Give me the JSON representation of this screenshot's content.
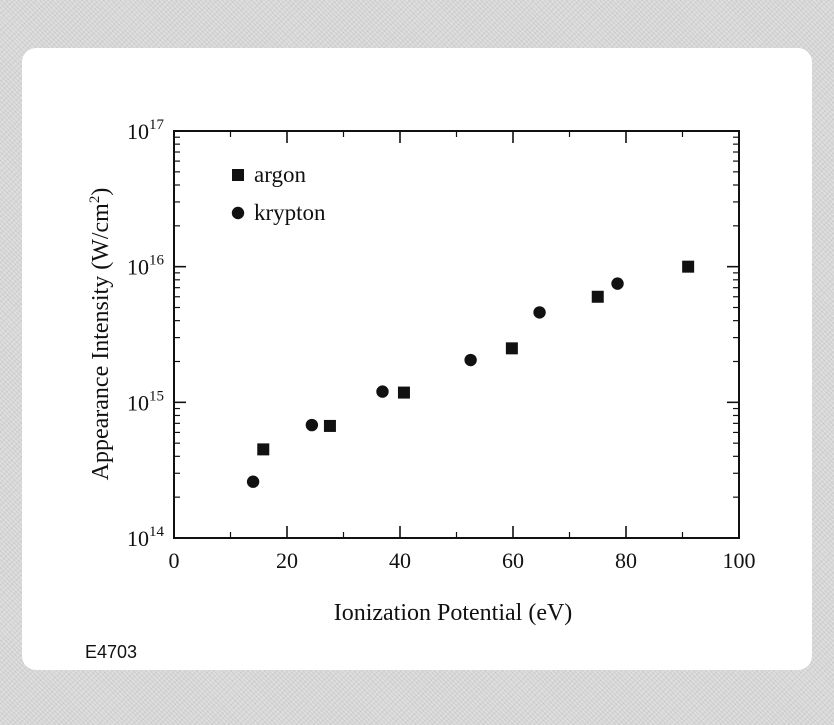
{
  "figure_code": "E4703",
  "chart_data": {
    "type": "scatter",
    "xlabel": "Ionization Potential (eV)",
    "ylabel": "Appearance Intensity (W/cm²)",
    "ylabel_parts": {
      "main": "Appearance Intensity (W/cm",
      "sup": "2",
      "end": ")"
    },
    "xlim": [
      0,
      100
    ],
    "ylim": [
      100000000000000.0,
      1e+17
    ],
    "yscale": "log",
    "grid": false,
    "legend_position": "top-left",
    "x_ticks": [
      0,
      20,
      40,
      60,
      80,
      100
    ],
    "x_tick_labels": [
      "0",
      "20",
      "40",
      "60",
      "80",
      "100"
    ],
    "y_ticks": [
      {
        "value": 100000000000000.0,
        "base": "10",
        "exp": "14"
      },
      {
        "value": 1000000000000000.0,
        "base": "10",
        "exp": "15"
      },
      {
        "value": 1e+16,
        "base": "10",
        "exp": "16"
      },
      {
        "value": 1e+17,
        "base": "10",
        "exp": "17"
      }
    ],
    "series": [
      {
        "name": "argon",
        "marker": "square",
        "color": "#111111",
        "points": [
          {
            "x": 15.8,
            "y": 450000000000000.0
          },
          {
            "x": 27.6,
            "y": 670000000000000.0
          },
          {
            "x": 40.7,
            "y": 1180000000000000.0
          },
          {
            "x": 59.8,
            "y": 2500000000000000.0
          },
          {
            "x": 75.0,
            "y": 6000000000000000.0
          },
          {
            "x": 91.0,
            "y": 1e+16
          }
        ]
      },
      {
        "name": "krypton",
        "marker": "circle",
        "color": "#111111",
        "points": [
          {
            "x": 14.0,
            "y": 260000000000000.0
          },
          {
            "x": 24.4,
            "y": 680000000000000.0
          },
          {
            "x": 36.9,
            "y": 1200000000000000.0
          },
          {
            "x": 52.5,
            "y": 2050000000000000.0
          },
          {
            "x": 64.7,
            "y": 4600000000000000.0
          },
          {
            "x": 78.5,
            "y": 7500000000000000.0
          }
        ]
      }
    ]
  }
}
